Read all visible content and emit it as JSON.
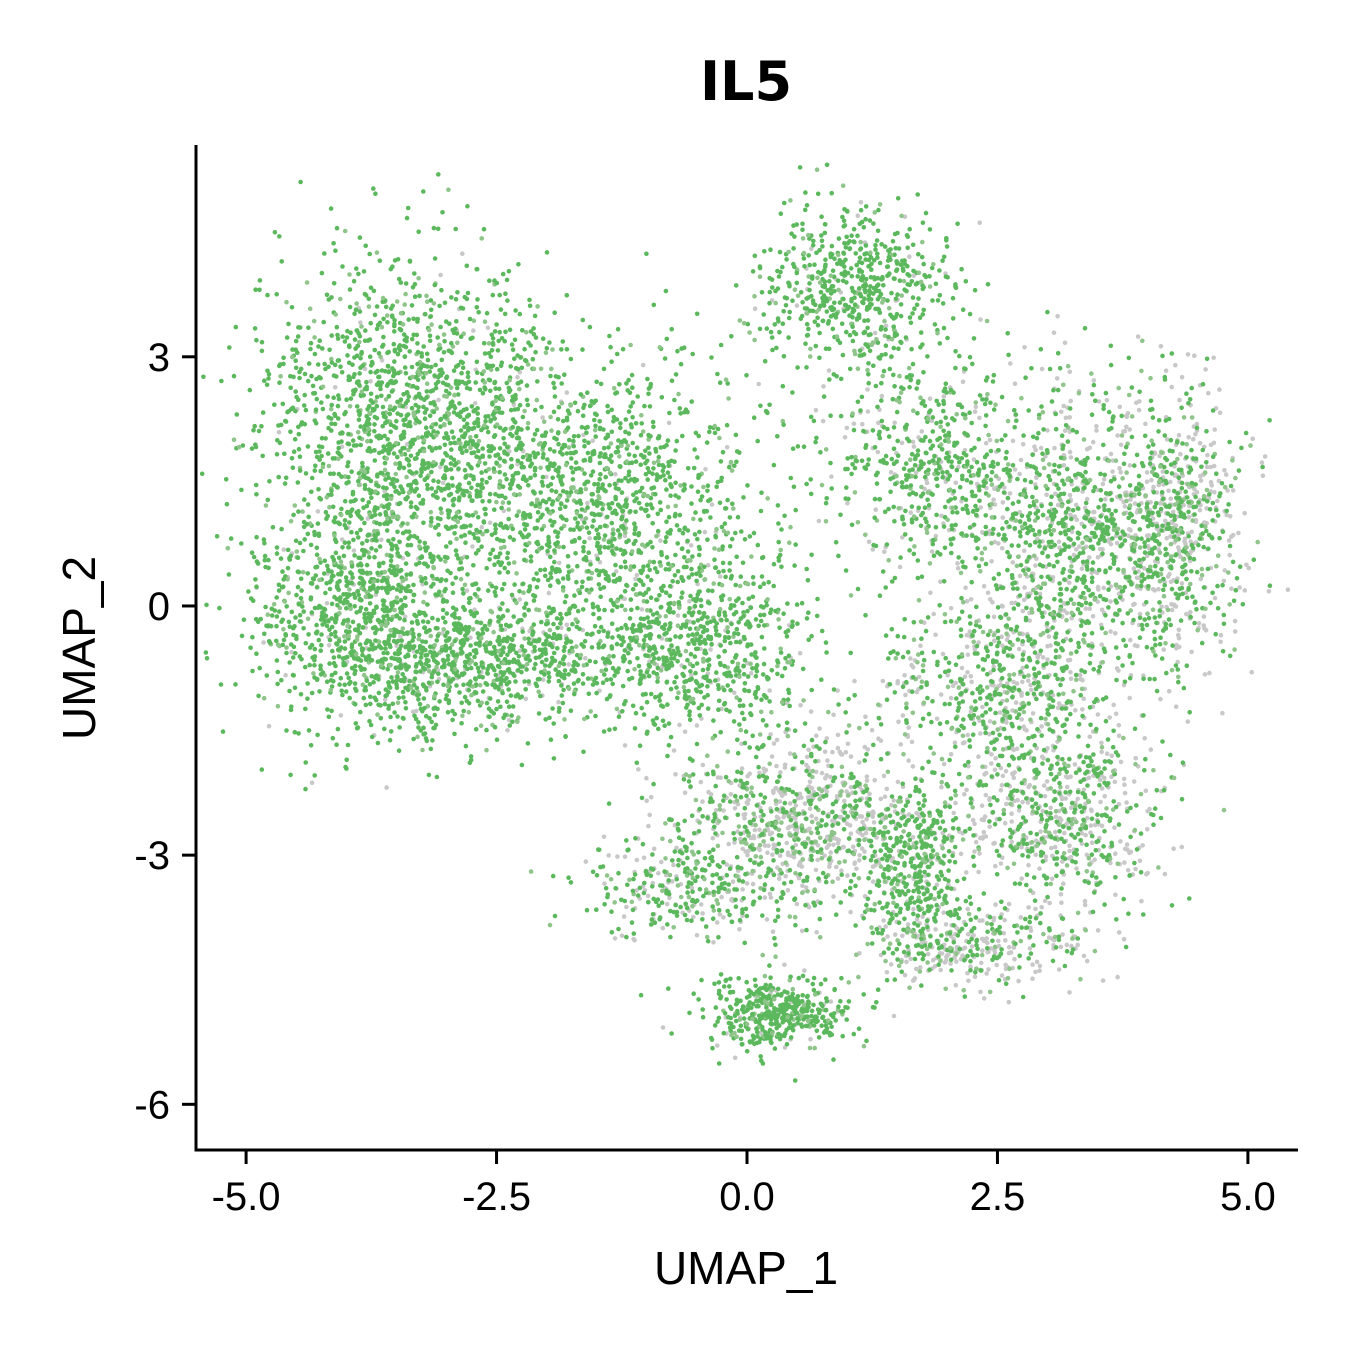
{
  "chart_data": {
    "type": "scatter",
    "title": "IL5",
    "xlabel": "UMAP_1",
    "ylabel": "UMAP_2",
    "xlim": [
      -5.5,
      5.5
    ],
    "ylim": [
      -6.55,
      5.55
    ],
    "x_ticks": [
      {
        "value": -5.0,
        "label": "-5.0"
      },
      {
        "value": -2.5,
        "label": "-2.5"
      },
      {
        "value": 0.0,
        "label": "0.0"
      },
      {
        "value": 2.5,
        "label": "2.5"
      },
      {
        "value": 5.0,
        "label": "5.0"
      }
    ],
    "y_ticks": [
      {
        "value": 3,
        "label": "3"
      },
      {
        "value": 0,
        "label": "0"
      },
      {
        "value": -3,
        "label": "-3"
      },
      {
        "value": -6,
        "label": "-6"
      }
    ],
    "grid": false,
    "legend": "none",
    "colors": {
      "high": "#5cb85c",
      "mid": "#8fc48a",
      "low": "#c8c8c8"
    },
    "series": [
      {
        "clusters": [
          {
            "cx": -3.3,
            "cy": 2.3,
            "sx": 0.9,
            "sy": 1.1,
            "n": 1500,
            "low_frac": 0.03
          },
          {
            "cx": -1.5,
            "cy": 1.2,
            "sx": 1.0,
            "sy": 1.1,
            "n": 1300,
            "low_frac": 0.05
          },
          {
            "cx": -3.9,
            "cy": 0.0,
            "sx": 0.6,
            "sy": 0.9,
            "n": 900,
            "low_frac": 0.06
          },
          {
            "cx": -2.7,
            "cy": -0.7,
            "sx": 0.8,
            "sy": 0.5,
            "n": 800,
            "low_frac": 0.08
          },
          {
            "cx": -0.5,
            "cy": -0.5,
            "sx": 0.7,
            "sy": 0.7,
            "n": 700,
            "low_frac": 0.1
          },
          {
            "cx": 1.1,
            "cy": 3.8,
            "sx": 0.55,
            "sy": 0.55,
            "n": 600,
            "low_frac": 0.05
          },
          {
            "cx": 1.8,
            "cy": 1.8,
            "sx": 0.6,
            "sy": 0.8,
            "n": 500,
            "low_frac": 0.15
          },
          {
            "cx": 3.3,
            "cy": 0.8,
            "sx": 0.8,
            "sy": 1.1,
            "n": 1300,
            "low_frac": 0.35
          },
          {
            "cx": 4.3,
            "cy": 1.0,
            "sx": 0.35,
            "sy": 0.9,
            "n": 500,
            "low_frac": 0.45
          },
          {
            "cx": 2.5,
            "cy": -1.0,
            "sx": 0.7,
            "sy": 0.6,
            "n": 500,
            "low_frac": 0.3
          },
          {
            "cx": 0.6,
            "cy": -2.6,
            "sx": 0.8,
            "sy": 0.6,
            "n": 900,
            "low_frac": 0.5
          },
          {
            "cx": 3.1,
            "cy": -2.5,
            "sx": 0.6,
            "sy": 0.7,
            "n": 700,
            "low_frac": 0.45
          },
          {
            "cx": 0.3,
            "cy": -4.9,
            "sx": 0.45,
            "sy": 0.25,
            "n": 450,
            "low_frac": 0.05
          },
          {
            "cx": 1.7,
            "cy": -3.2,
            "sx": 0.3,
            "sy": 0.6,
            "n": 350,
            "low_frac": 0.08
          },
          {
            "cx": 2.3,
            "cy": -4.1,
            "sx": 0.6,
            "sy": 0.3,
            "n": 350,
            "low_frac": 0.5
          },
          {
            "cx": -0.6,
            "cy": -3.4,
            "sx": 0.6,
            "sy": 0.35,
            "n": 300,
            "low_frac": 0.25
          }
        ]
      }
    ]
  }
}
